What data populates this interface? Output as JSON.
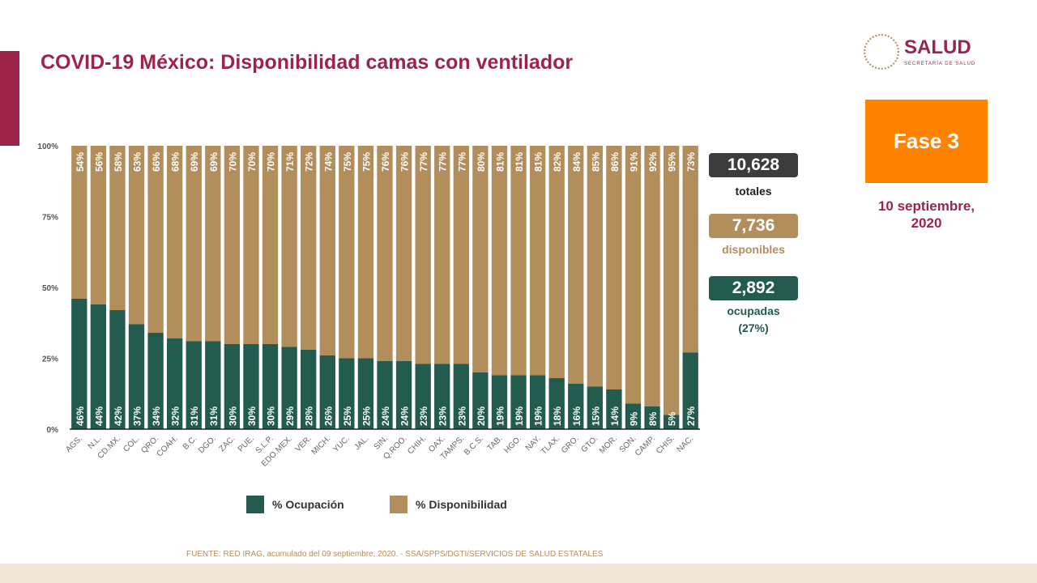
{
  "header": {
    "title": "COVID-19 México: Disponibilidad camas con ventilador",
    "logo_text": "SALUD",
    "logo_sub": "SECRETARÍA DE SALUD"
  },
  "phase": {
    "label": "Fase 3",
    "color": "#ff8200"
  },
  "date": "10 septiembre, 2020",
  "summary": {
    "total": "10,628",
    "total_label": "totales",
    "available": "7,736",
    "available_label": "disponibles",
    "occupied": "2,892",
    "occupied_label": "ocupadas",
    "occupied_pct": "(27%)"
  },
  "source": "FUENTE: RED IRAG, acumulado del 09 septiembre, 2020. -  SSA/SPPS/DGTI/SERVICIOS DE SALUD ESTATALES",
  "chart_data": {
    "type": "bar",
    "stacked": true,
    "categories": [
      "AGS.",
      "N.L.",
      "CD.MX.",
      "COL.",
      "QRO.",
      "COAH.",
      "B.C.",
      "DGO.",
      "ZAC.",
      "PUE.",
      "S.L.P.",
      "EDO.MEX.",
      "VER.",
      "MICH.",
      "YUC.",
      "JAL.",
      "SIN.",
      "Q.ROO.",
      "CHIH.",
      "OAX.",
      "TAMPS.",
      "B.C.S.",
      "TAB.",
      "HGO.",
      "NAY.",
      "TLAX.",
      "GRO.",
      "GTO.",
      "MOR.",
      "SON.",
      "CAMP.",
      "CHIS.",
      "NAC."
    ],
    "series": [
      {
        "name": "% Ocupación",
        "color": "#235b4e",
        "values": [
          46,
          44,
          42,
          37,
          34,
          32,
          31,
          31,
          30,
          30,
          30,
          29,
          28,
          26,
          25,
          25,
          24,
          24,
          23,
          23,
          23,
          20,
          19,
          19,
          19,
          18,
          16,
          15,
          14,
          9,
          8,
          5,
          27
        ]
      },
      {
        "name": "% Disponibilidad",
        "color": "#b38e5d",
        "values": [
          54,
          56,
          58,
          63,
          66,
          68,
          69,
          69,
          70,
          70,
          70,
          71,
          72,
          74,
          75,
          75,
          76,
          76,
          77,
          77,
          77,
          80,
          81,
          81,
          81,
          82,
          84,
          85,
          86,
          91,
          92,
          95,
          73
        ]
      }
    ],
    "yticks": [
      "0%",
      "25%",
      "50%",
      "75%",
      "100%"
    ],
    "ylim": [
      0,
      100
    ],
    "legend": "bottom",
    "grid": false
  }
}
